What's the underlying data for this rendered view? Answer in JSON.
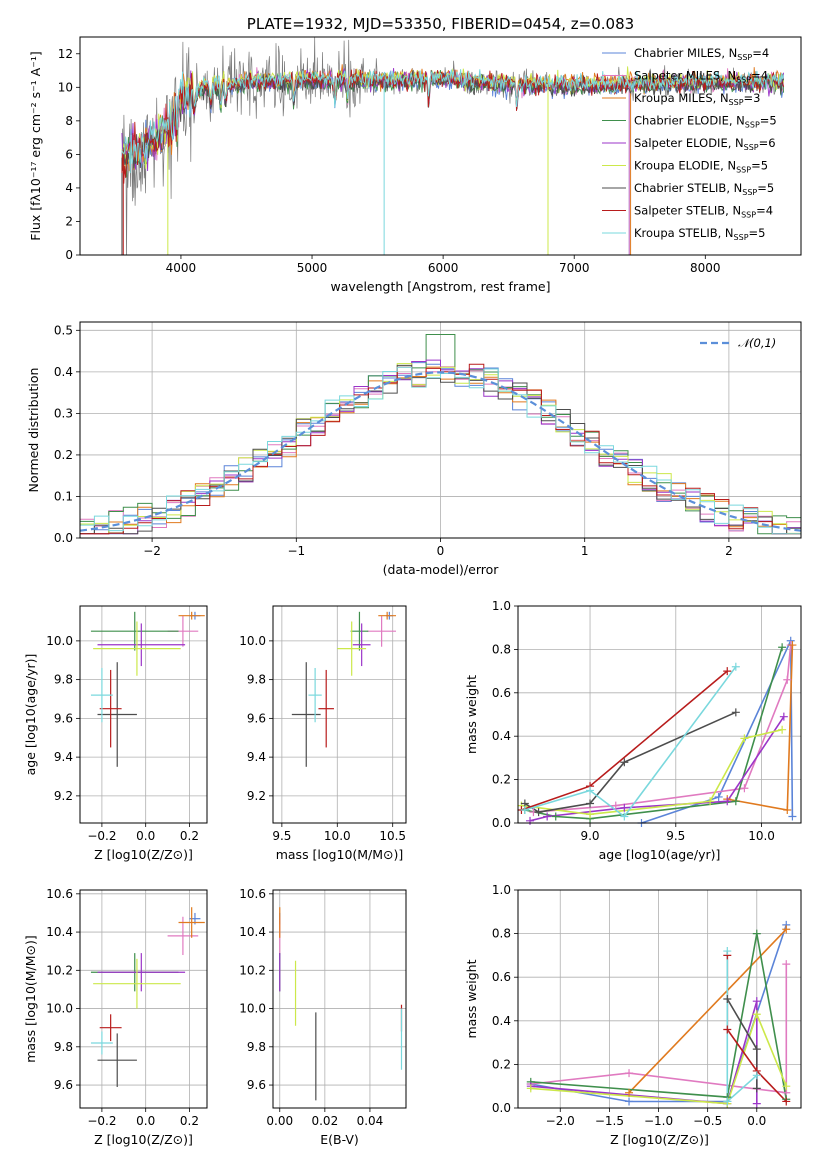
{
  "colors": {
    "Chabrier MILES": "#5b84d8",
    "Salpeter MILES": "#e07ac0",
    "Kroupa MILES": "#e07a1f",
    "Chabrier ELODIE": "#3f8f4c",
    "Salpeter ELODIE": "#9b35c8",
    "Kroupa ELODIE": "#cce84a",
    "Chabrier STELIB": "#4d4d4d",
    "Salpeter STELIB": "#b81c1c",
    "Kroupa STELIB": "#7ad8dd",
    "normal": "#5b8fd9"
  },
  "chart_data": [
    {
      "id": "spectrum",
      "type": "line",
      "title": "PLATE=1932, MJD=53350, FIBERID=0454, z=0.083",
      "xlabel": "wavelength [Angstrom, rest frame]",
      "ylabel": "Flux [fλ10⁻¹⁷ erg cm⁻² s⁻¹ A⁻¹]",
      "xlim": [
        3230,
        8730
      ],
      "ylim": [
        0,
        13
      ],
      "xticks": [
        4000,
        5000,
        6000,
        7000,
        8000
      ],
      "yticks": [
        0,
        2,
        4,
        6,
        8,
        10,
        12
      ],
      "grid": false,
      "legend_position": "top-right",
      "data_range": [
        3550,
        8600
      ],
      "continuum": [
        [
          3550,
          5.8
        ],
        [
          3700,
          6.3
        ],
        [
          3900,
          7.6
        ],
        [
          4000,
          9.4
        ],
        [
          4200,
          10.0
        ],
        [
          4500,
          10.3
        ],
        [
          5000,
          10.4
        ],
        [
          5500,
          10.4
        ],
        [
          6000,
          10.5
        ],
        [
          6500,
          10.2
        ],
        [
          7000,
          10.1
        ],
        [
          7500,
          10.2
        ],
        [
          8000,
          10.3
        ],
        [
          8600,
          10.3
        ]
      ],
      "series": [
        {
          "name": "Chabrier MILES, N_SSP=4"
        },
        {
          "name": "Salpeter MILES, N_SSP=4"
        },
        {
          "name": "Kroupa MILES, N_SSP=3"
        },
        {
          "name": "Chabrier ELODIE, N_SSP=5"
        },
        {
          "name": "Salpeter ELODIE, N_SSP=6"
        },
        {
          "name": "Kroupa ELODIE, N_SSP=5"
        },
        {
          "name": "Chabrier STELIB, N_SSP=5"
        },
        {
          "name": "Salpeter STELIB, N_SSP=4"
        },
        {
          "name": "Kroupa STELIB, N_SSP=5"
        }
      ]
    },
    {
      "id": "residuals",
      "type": "bar",
      "xlabel": "(data-model)/error",
      "ylabel": "Normed distribution",
      "xlim": [
        -2.5,
        2.5
      ],
      "ylim": [
        0,
        0.52
      ],
      "xticks": [
        -2,
        -1,
        0,
        1,
        2
      ],
      "yticks": [
        0.0,
        0.1,
        0.2,
        0.3,
        0.4,
        0.5
      ],
      "grid": true,
      "legend_position": "top-right",
      "legend": "𝒩(0,1)",
      "bins": 50,
      "peak_bin_value": 0.49
    },
    {
      "id": "age_vs_Z",
      "type": "scatter",
      "xlabel": "Z [log10(Z/Z⊙)]",
      "ylabel": "age  [log10(age/yr)]",
      "xlim": [
        -0.3,
        0.28
      ],
      "ylim": [
        9.06,
        10.18
      ],
      "xticks": [
        -0.2,
        0.0,
        0.2
      ],
      "yticks": [
        9.2,
        9.4,
        9.6,
        9.8,
        10.0
      ],
      "grid": true,
      "points": [
        {
          "model": "Chabrier MILES",
          "x": 0.225,
          "xerr": 0.025,
          "y": 10.13,
          "yerr": 0.02
        },
        {
          "model": "Salpeter MILES",
          "x": 0.17,
          "xerr": 0.07,
          "y": 10.05,
          "yerr": 0.08
        },
        {
          "model": "Kroupa MILES",
          "x": 0.21,
          "xerr": 0.06,
          "y": 10.13,
          "yerr": 0.02
        },
        {
          "model": "Chabrier ELODIE",
          "x": -0.05,
          "xerr": 0.2,
          "y": 10.05,
          "yerr": 0.1
        },
        {
          "model": "Salpeter ELODIE",
          "x": -0.02,
          "xerr": 0.2,
          "y": 9.98,
          "yerr": 0.11
        },
        {
          "model": "Kroupa ELODIE",
          "x": -0.04,
          "xerr": 0.2,
          "y": 9.96,
          "yerr": 0.14
        },
        {
          "model": "Chabrier STELIB",
          "x": -0.13,
          "xerr": 0.09,
          "y": 9.62,
          "yerr": 0.27
        },
        {
          "model": "Salpeter STELIB",
          "x": -0.16,
          "xerr": 0.05,
          "y": 9.65,
          "yerr": 0.2
        },
        {
          "model": "Kroupa STELIB",
          "x": -0.2,
          "xerr": 0.05,
          "y": 9.72,
          "yerr": 0.14
        }
      ]
    },
    {
      "id": "age_vs_mass",
      "type": "scatter",
      "xlabel": "mass [log10(M/M⊙)]",
      "xlim": [
        9.42,
        10.62
      ],
      "ylim": [
        9.06,
        10.18
      ],
      "xticks": [
        9.5,
        10.0,
        10.5
      ],
      "yticks": [
        9.2,
        9.4,
        9.6,
        9.8,
        10.0
      ],
      "grid": true,
      "points": [
        {
          "model": "Chabrier MILES",
          "x": 10.47,
          "xerr": 0.03,
          "y": 10.13,
          "yerr": 0.02
        },
        {
          "model": "Salpeter MILES",
          "x": 10.4,
          "xerr": 0.13,
          "y": 10.05,
          "yerr": 0.08
        },
        {
          "model": "Kroupa MILES",
          "x": 10.45,
          "xerr": 0.08,
          "y": 10.13,
          "yerr": 0.02
        },
        {
          "model": "Chabrier ELODIE",
          "x": 10.2,
          "xerr": 0.08,
          "y": 10.05,
          "yerr": 0.1
        },
        {
          "model": "Salpeter ELODIE",
          "x": 10.22,
          "xerr": 0.08,
          "y": 9.98,
          "yerr": 0.11
        },
        {
          "model": "Kroupa ELODIE",
          "x": 10.13,
          "xerr": 0.13,
          "y": 9.96,
          "yerr": 0.14
        },
        {
          "model": "Chabrier STELIB",
          "x": 9.72,
          "xerr": 0.13,
          "y": 9.62,
          "yerr": 0.27
        },
        {
          "model": "Salpeter STELIB",
          "x": 9.9,
          "xerr": 0.07,
          "y": 9.65,
          "yerr": 0.2
        },
        {
          "model": "Kroupa STELIB",
          "x": 9.8,
          "xerr": 0.06,
          "y": 9.72,
          "yerr": 0.14
        }
      ]
    },
    {
      "id": "weight_vs_age",
      "type": "line",
      "xlabel": "age  [log10(age/yr)]",
      "ylabel": "mass weight",
      "xlim": [
        8.58,
        10.23
      ],
      "ylim": [
        0,
        1
      ],
      "xticks": [
        9.0,
        9.5,
        10.0
      ],
      "yticks": [
        0.0,
        0.2,
        0.4,
        0.6,
        0.8,
        1.0
      ],
      "grid": true,
      "series": [
        {
          "name": "Chabrier MILES",
          "x": [
            9.3,
            9.75,
            10.17,
            10.18
          ],
          "y": [
            0.0,
            0.12,
            0.84,
            0.03
          ]
        },
        {
          "name": "Salpeter MILES",
          "x": [
            8.67,
            9.15,
            9.9,
            10.15,
            10.17
          ],
          "y": [
            0.05,
            0.08,
            0.16,
            0.66,
            0.82
          ]
        },
        {
          "name": "Kroupa MILES",
          "x": [
            9.8,
            10.15,
            10.18
          ],
          "y": [
            0.11,
            0.06,
            0.82
          ]
        },
        {
          "name": "Chabrier ELODIE",
          "x": [
            8.62,
            8.8,
            9.0,
            9.85,
            10.12
          ],
          "y": [
            0.06,
            0.03,
            0.02,
            0.1,
            0.81
          ]
        },
        {
          "name": "Salpeter ELODIE",
          "x": [
            8.65,
            8.75,
            9.2,
            9.8,
            10.13
          ],
          "y": [
            0.01,
            0.03,
            0.07,
            0.1,
            0.49
          ]
        },
        {
          "name": "Kroupa ELODIE",
          "x": [
            8.6,
            9.0,
            9.7,
            9.9,
            10.12
          ],
          "y": [
            0.08,
            0.04,
            0.1,
            0.39,
            0.43
          ]
        },
        {
          "name": "Chabrier STELIB",
          "x": [
            8.62,
            8.7,
            9.0,
            9.2,
            9.85
          ],
          "y": [
            0.09,
            0.05,
            0.09,
            0.28,
            0.51
          ]
        },
        {
          "name": "Salpeter STELIB",
          "x": [
            8.6,
            9.0,
            9.8
          ],
          "y": [
            0.06,
            0.17,
            0.7
          ]
        },
        {
          "name": "Kroupa STELIB",
          "x": [
            8.62,
            9.0,
            9.2,
            9.85
          ],
          "y": [
            0.06,
            0.15,
            0.03,
            0.72
          ]
        }
      ]
    },
    {
      "id": "mass_vs_Z",
      "type": "scatter",
      "xlabel": "Z [log10(Z/Z⊙)]",
      "ylabel": "mass [log10(M/M⊙)]",
      "xlim": [
        -0.3,
        0.28
      ],
      "ylim": [
        9.48,
        10.62
      ],
      "xticks": [
        -0.2,
        0.0,
        0.2
      ],
      "yticks": [
        9.6,
        9.8,
        10.0,
        10.2,
        10.4,
        10.6
      ],
      "grid": true,
      "points": [
        {
          "model": "Chabrier MILES",
          "x": 0.225,
          "xerr": 0.025,
          "y": 10.47,
          "yerr": 0.03
        },
        {
          "model": "Salpeter MILES",
          "x": 0.17,
          "xerr": 0.07,
          "y": 10.38,
          "yerr": 0.1
        },
        {
          "model": "Kroupa MILES",
          "x": 0.21,
          "xerr": 0.06,
          "y": 10.45,
          "yerr": 0.08
        },
        {
          "model": "Chabrier ELODIE",
          "x": -0.05,
          "xerr": 0.2,
          "y": 10.19,
          "yerr": 0.1
        },
        {
          "model": "Salpeter ELODIE",
          "x": -0.02,
          "xerr": 0.2,
          "y": 10.19,
          "yerr": 0.1
        },
        {
          "model": "Kroupa ELODIE",
          "x": -0.04,
          "xerr": 0.2,
          "y": 10.13,
          "yerr": 0.13
        },
        {
          "model": "Chabrier STELIB",
          "x": -0.13,
          "xerr": 0.09,
          "y": 9.73,
          "yerr": 0.14
        },
        {
          "model": "Salpeter STELIB",
          "x": -0.16,
          "xerr": 0.05,
          "y": 9.9,
          "yerr": 0.07
        },
        {
          "model": "Kroupa STELIB",
          "x": -0.2,
          "xerr": 0.05,
          "y": 9.82,
          "yerr": 0.06
        }
      ]
    },
    {
      "id": "mass_vs_EBV",
      "type": "scatter",
      "xlabel": "E(B-V)",
      "xlim": [
        -0.003,
        0.056
      ],
      "ylim": [
        9.48,
        10.62
      ],
      "xticks": [
        0.0,
        0.02,
        0.04
      ],
      "yticks": [
        9.6,
        9.8,
        10.0,
        10.2,
        10.4,
        10.6
      ],
      "grid": true,
      "points": [
        {
          "model": "Chabrier MILES",
          "x": 0.0,
          "y": 10.47,
          "yerr": 0.03
        },
        {
          "model": "Salpeter MILES",
          "x": 0.0,
          "y": 10.38,
          "yerr": 0.1
        },
        {
          "model": "Kroupa MILES",
          "x": 0.0,
          "y": 10.45,
          "yerr": 0.08
        },
        {
          "model": "Chabrier ELODIE",
          "x": 0.0,
          "y": 10.19,
          "yerr": 0.1
        },
        {
          "model": "Salpeter ELODIE",
          "x": 0.0,
          "y": 10.19,
          "yerr": 0.1
        },
        {
          "model": "Kroupa ELODIE",
          "x": 0.007,
          "y": 10.08,
          "yerr": 0.17
        },
        {
          "model": "Chabrier STELIB",
          "x": 0.016,
          "y": 9.75,
          "yerr": 0.23
        },
        {
          "model": "Salpeter STELIB",
          "x": 0.054,
          "y": 9.95,
          "yerr": 0.07
        },
        {
          "model": "Kroupa STELIB",
          "x": 0.054,
          "y": 9.84,
          "yerr": 0.16
        }
      ]
    },
    {
      "id": "weight_vs_Z",
      "type": "line",
      "xlabel": "Z [log10(Z/Z⊙)]",
      "ylabel": "mass weight",
      "xlim": [
        -2.43,
        0.45
      ],
      "ylim": [
        0,
        1
      ],
      "xticks": [
        -2.0,
        -1.5,
        -1.0,
        -0.5,
        0.0
      ],
      "yticks": [
        0.0,
        0.2,
        0.4,
        0.6,
        0.8,
        1.0
      ],
      "grid": true,
      "series": [
        {
          "name": "Chabrier MILES",
          "x": [
            -2.3,
            -1.3,
            -0.3,
            0.3
          ],
          "y": [
            0.11,
            0.03,
            0.03,
            0.84
          ]
        },
        {
          "name": "Salpeter MILES",
          "x": [
            -2.3,
            -1.3,
            0.3,
            0.3
          ],
          "y": [
            0.11,
            0.16,
            0.07,
            0.66
          ]
        },
        {
          "name": "Kroupa MILES",
          "x": [
            -1.3,
            0.3
          ],
          "y": [
            0.07,
            0.82
          ]
        },
        {
          "name": "Chabrier ELODIE",
          "x": [
            -2.3,
            -0.3,
            0.0,
            0.3
          ],
          "y": [
            0.12,
            0.05,
            0.8,
            0.04
          ]
        },
        {
          "name": "Salpeter ELODIE",
          "x": [
            -2.3,
            -0.3,
            0.0,
            0.0
          ],
          "y": [
            0.1,
            0.02,
            0.49,
            0.02
          ]
        },
        {
          "name": "Kroupa ELODIE",
          "x": [
            -2.3,
            -0.3,
            0.0,
            0.3
          ],
          "y": [
            0.09,
            0.02,
            0.43,
            0.1
          ]
        },
        {
          "name": "Chabrier STELIB",
          "x": [
            -0.3,
            0.0,
            0.0
          ],
          "y": [
            0.5,
            0.27,
            0.09
          ]
        },
        {
          "name": "Salpeter STELIB",
          "x": [
            -0.3,
            -0.3,
            0.0,
            0.3
          ],
          "y": [
            0.7,
            0.36,
            0.17,
            0.03
          ]
        },
        {
          "name": "Kroupa STELIB",
          "x": [
            -0.3,
            -0.3,
            0.0
          ],
          "y": [
            0.72,
            0.03,
            0.15
          ]
        }
      ]
    }
  ]
}
